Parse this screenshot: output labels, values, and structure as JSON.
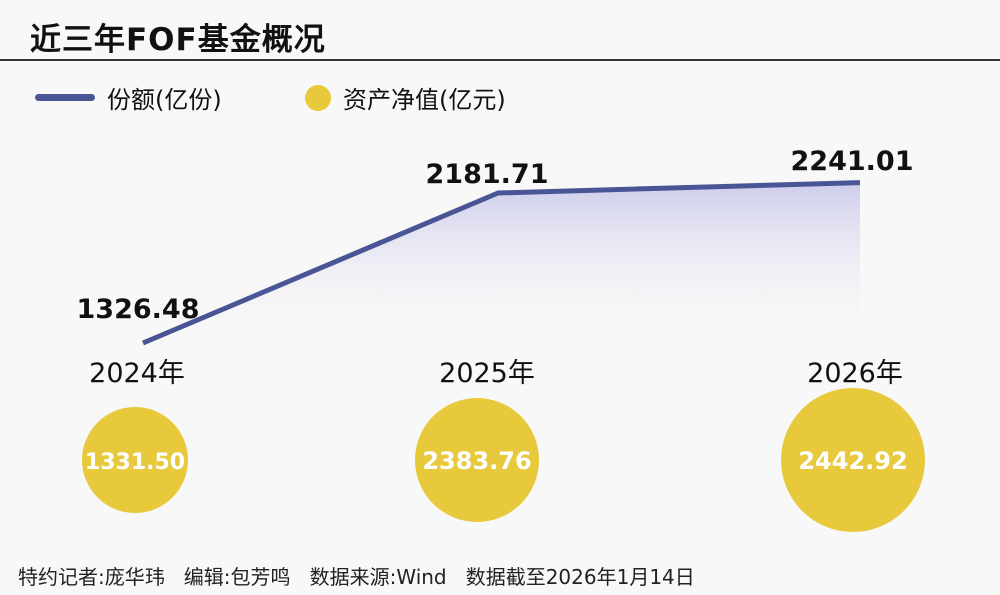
{
  "title": "近三年FOF基金概况",
  "legend": {
    "line_label": "份额(亿份)",
    "dot_label": "资产净值(亿元)"
  },
  "colors": {
    "line": "#4a5596",
    "dot": "#e8c93b",
    "fill_top": "#c9c8ea"
  },
  "chart_data": {
    "type": "line",
    "title": "近三年FOF基金概况",
    "categories": [
      "2024年",
      "2025年",
      "2026年"
    ],
    "series": [
      {
        "name": "份额(亿份)",
        "type": "line",
        "values": [
          1326.48,
          2181.71,
          2241.01
        ],
        "labels": [
          "1326.48",
          "2181.71",
          "2241.01"
        ]
      },
      {
        "name": "资产净值(亿元)",
        "type": "bubble",
        "values": [
          1331.5,
          2383.76,
          2442.92
        ],
        "labels": [
          "1331.50",
          "2383.76",
          "2442.92"
        ]
      }
    ],
    "legend_position": "top-left",
    "grid": false
  },
  "footer": "特约记者:庞华玮   编辑:包芳鸣   数据来源:Wind   数据截至2026年1月14日"
}
